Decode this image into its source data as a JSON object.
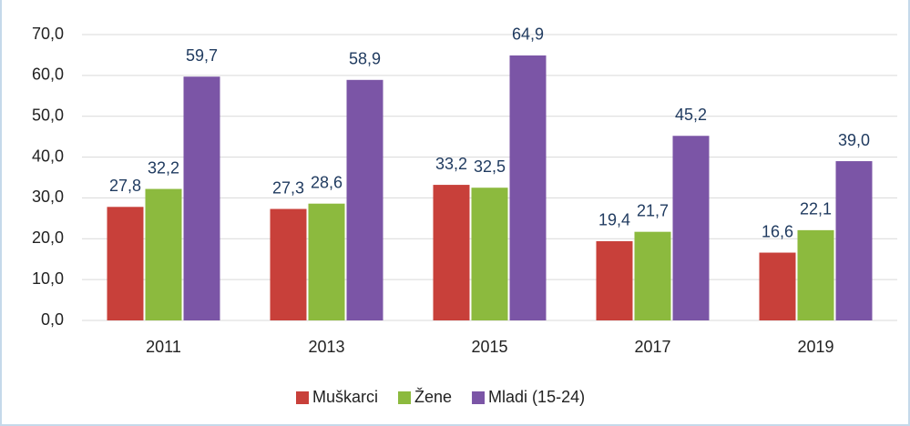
{
  "chart_data": {
    "type": "bar",
    "categories": [
      "2011",
      "2013",
      "2015",
      "2017",
      "2019"
    ],
    "series": [
      {
        "name": "Muškarci",
        "color": "#c8403a",
        "values": [
          27.8,
          27.3,
          33.2,
          19.4,
          16.6
        ],
        "value_labels": [
          "27,8",
          "27,3",
          "33,2",
          "19,4",
          "16,6"
        ]
      },
      {
        "name": "Žene",
        "color": "#8cba3e",
        "values": [
          32.2,
          28.6,
          32.5,
          21.7,
          22.1
        ],
        "value_labels": [
          "32,2",
          "28,6",
          "32,5",
          "21,7",
          "22,1"
        ]
      },
      {
        "name": "Mladi (15-24)",
        "color": "#7b55a6",
        "values": [
          59.7,
          58.9,
          64.9,
          45.2,
          39.0
        ],
        "value_labels": [
          "59,7",
          "58,9",
          "64,9",
          "45,2",
          "39,0"
        ]
      }
    ],
    "ylim": [
      0,
      70
    ],
    "yticks": [
      {
        "value": 0,
        "label": "0,0"
      },
      {
        "value": 10,
        "label": "10,0"
      },
      {
        "value": 20,
        "label": "20,0"
      },
      {
        "value": 30,
        "label": "30,0"
      },
      {
        "value": 40,
        "label": "40,0"
      },
      {
        "value": 50,
        "label": "50,0"
      },
      {
        "value": 60,
        "label": "60,0"
      },
      {
        "value": 70,
        "label": "70,0"
      }
    ],
    "grid": true,
    "legend": "bottom"
  }
}
